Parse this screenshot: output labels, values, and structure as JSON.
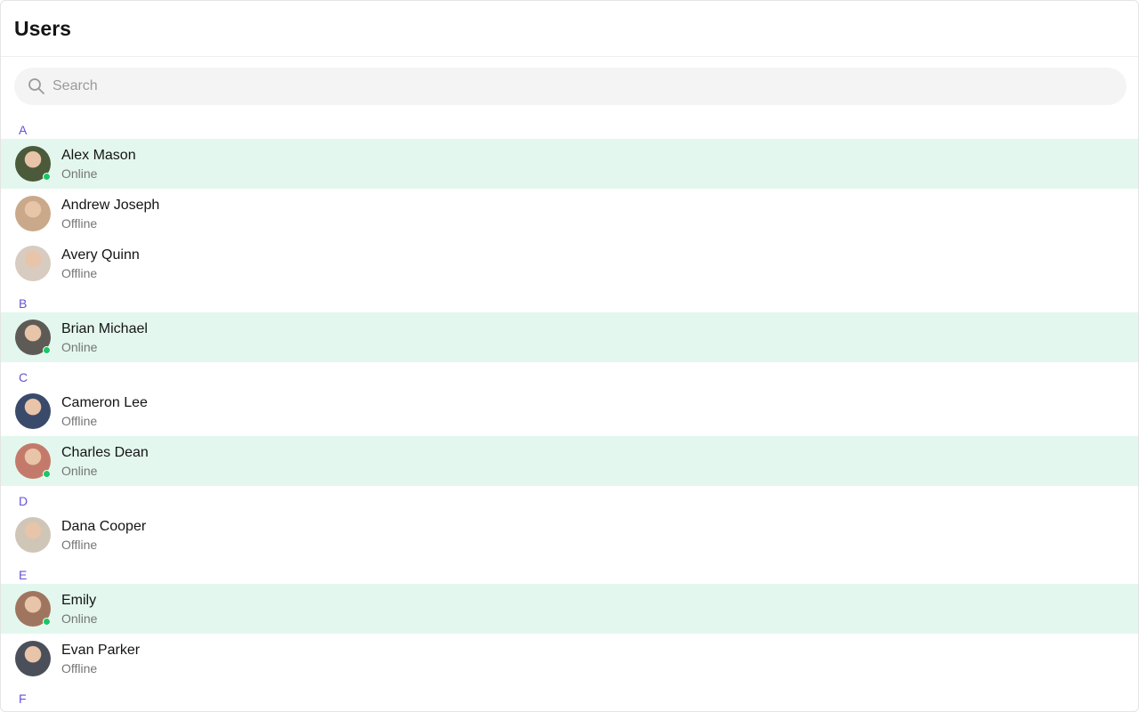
{
  "header": {
    "title": "Users"
  },
  "search": {
    "placeholder": "Search",
    "value": "",
    "icon": "search-icon"
  },
  "colors": {
    "accent": "#6851d6",
    "online": "#17c964",
    "highlight": "#e3f7ee"
  },
  "sections": [
    {
      "letter": "A",
      "users": [
        {
          "name": "Alex Mason",
          "status": "Online",
          "online": true,
          "avatar": "#4a5a3a"
        },
        {
          "name": "Andrew Joseph",
          "status": "Offline",
          "online": false,
          "avatar": "#c9a98a"
        },
        {
          "name": "Avery Quinn",
          "status": "Offline",
          "online": false,
          "avatar": "#d8cbc0"
        }
      ]
    },
    {
      "letter": "B",
      "users": [
        {
          "name": "Brian Michael",
          "status": "Online",
          "online": true,
          "avatar": "#5e5a55"
        }
      ]
    },
    {
      "letter": "C",
      "users": [
        {
          "name": "Cameron Lee",
          "status": "Offline",
          "online": false,
          "avatar": "#3a4a6a"
        },
        {
          "name": "Charles Dean",
          "status": "Online",
          "online": true,
          "avatar": "#c47a6a"
        }
      ]
    },
    {
      "letter": "D",
      "users": [
        {
          "name": "Dana Cooper",
          "status": "Offline",
          "online": false,
          "avatar": "#cfc6b8"
        }
      ]
    },
    {
      "letter": "E",
      "users": [
        {
          "name": "Emily",
          "status": "Online",
          "online": true,
          "avatar": "#a07560"
        },
        {
          "name": "Evan Parker",
          "status": "Offline",
          "online": false,
          "avatar": "#4a4f5a"
        }
      ]
    },
    {
      "letter": "F",
      "users": []
    }
  ]
}
